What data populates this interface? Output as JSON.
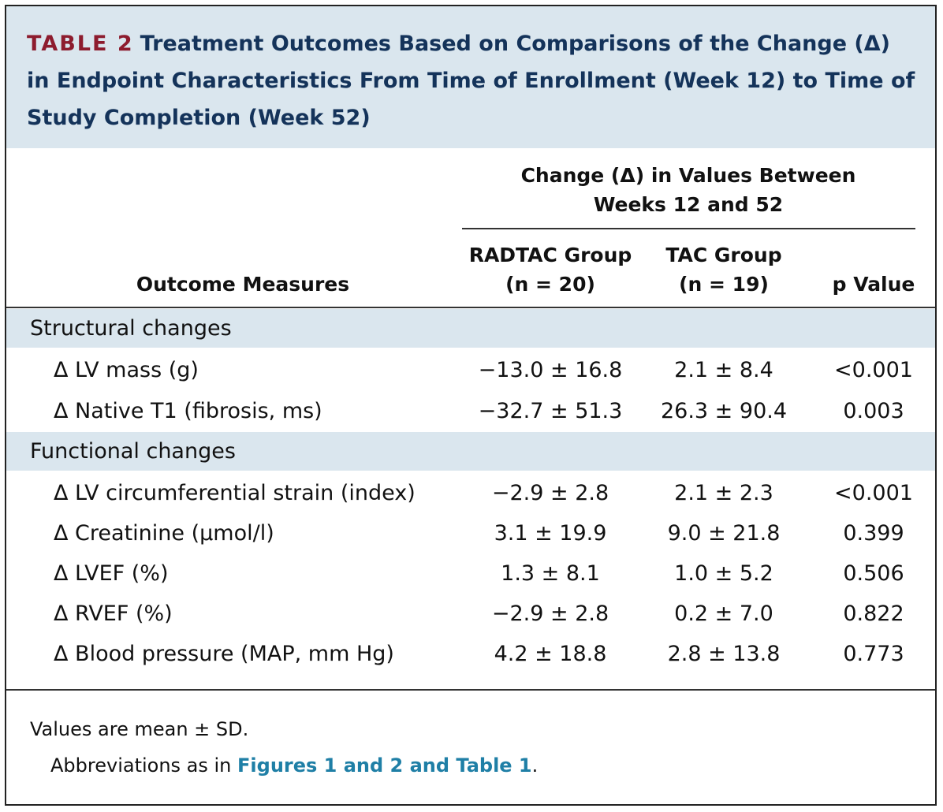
{
  "title": {
    "label": "TABLE 2",
    "text": "Treatment Outcomes Based on Comparisons of the Change (Δ) in Endpoint Characteristics From Time of Enrollment (Week 12) to Time of Study Completion (Week 52)"
  },
  "header": {
    "group_line1": "Change (Δ) in Values Between",
    "group_line2": "Weeks 12 and 52",
    "col_measure": "Outcome Measures",
    "col_rad_line1": "RADTAC Group",
    "col_rad_line2": "(n = 20)",
    "col_tac_line1": "TAC Group",
    "col_tac_line2": "(n = 19)",
    "col_p": "p Value"
  },
  "sections": [
    {
      "label": "Structural changes",
      "rows": [
        {
          "measure": "Δ LV mass (g)",
          "radtac": "−13.0 ± 16.8",
          "tac": "2.1 ± 8.4",
          "p": "<0.001"
        },
        {
          "measure": "Δ Native T1 (fibrosis, ms)",
          "radtac": "−32.7 ± 51.3",
          "tac": "26.3 ± 90.4",
          "p": "0.003"
        }
      ]
    },
    {
      "label": "Functional changes",
      "rows": [
        {
          "measure": "Δ LV circumferential strain (index)",
          "radtac": "−2.9 ± 2.8",
          "tac": "2.1 ± 2.3",
          "p": "<0.001"
        },
        {
          "measure": "Δ Creatinine (μmol/l)",
          "radtac": "3.1 ± 19.9",
          "tac": "9.0 ± 21.8",
          "p": "0.399"
        },
        {
          "measure": "Δ LVEF (%)",
          "radtac": "1.3 ± 8.1",
          "tac": "1.0 ± 5.2",
          "p": "0.506"
        },
        {
          "measure": "Δ RVEF (%)",
          "radtac": "−2.9 ± 2.8",
          "tac": "0.2 ± 7.0",
          "p": "0.822"
        },
        {
          "measure": "Δ Blood pressure (MAP, mm Hg)",
          "radtac": "4.2 ± 18.8",
          "tac": "2.8 ± 13.8",
          "p": "0.773"
        }
      ]
    }
  ],
  "footnotes": {
    "values": "Values are mean ± SD.",
    "abbrev_prefix": "Abbreviations as in ",
    "abbrev_link": "Figures 1 and 2 and Table 1",
    "abbrev_suffix": "."
  },
  "colors": {
    "band": "#dae6ee",
    "title": "#14335a",
    "label": "#8d1c2e",
    "link": "#1f7fa6"
  }
}
